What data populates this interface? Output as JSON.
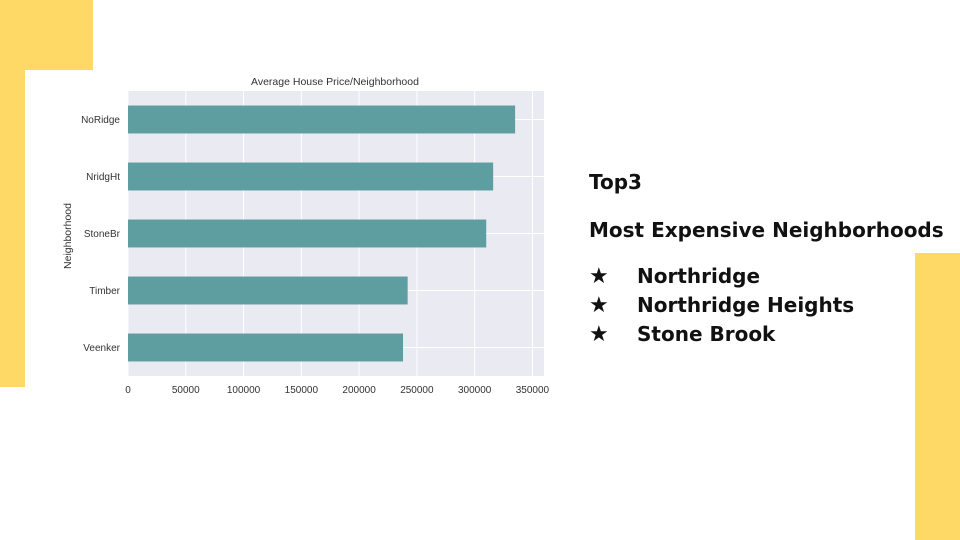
{
  "colors": {
    "accent_yellow": "#FFD966",
    "bar": "#5F9EA0",
    "plot_background": "#EAEAF2",
    "text": "#111111"
  },
  "chart_data": {
    "type": "bar",
    "orientation": "horizontal",
    "title": "Average House Price/Neighborhood",
    "xlabel": "",
    "ylabel": "Neighborhood",
    "categories": [
      "NoRidge",
      "NridgHt",
      "StoneBr",
      "Timber",
      "Veenker"
    ],
    "values": [
      335000,
      316000,
      310000,
      242000,
      238000
    ],
    "xlim": [
      0,
      360000
    ],
    "xticks": [
      0,
      50000,
      100000,
      150000,
      200000,
      250000,
      300000,
      350000
    ],
    "xtick_labels": [
      "0",
      "50000",
      "100000",
      "150000",
      "200000",
      "250000",
      "300000",
      "350000"
    ],
    "grid": true
  },
  "info": {
    "title": "Top3",
    "subtitle": "Most Expensive Neighborhoods",
    "star_icon": "star-icon",
    "items": [
      "Northridge",
      "Northridge Heights",
      "Stone Brook"
    ]
  }
}
